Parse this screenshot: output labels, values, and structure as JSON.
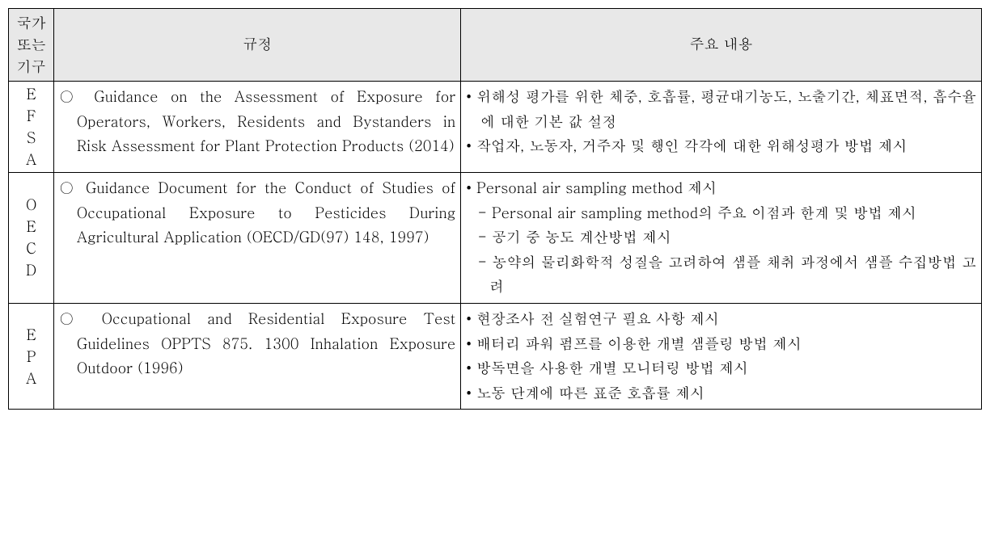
{
  "table": {
    "headers": {
      "col1_l1": "국가",
      "col1_l2": "또는",
      "col1_l3": "기구",
      "col2": "규정",
      "col3": "주요 내용"
    },
    "rows": [
      {
        "org": "EFSA",
        "reg": "○ Guidance on the Assessment of Exposure for Operators, Workers, Residents and Bystanders in Risk Assessment for Plant Protection Products (2014)",
        "bullets": [
          "• 위해성 평가를 위한 체중, 호흡률, 평균대기농도, 노출기간, 체표면적, 흡수율에 대한 기본 값 설정",
          "• 작업자, 노동자, 거주자 및 행인 각각에 대한 위해성평가 방법 제시"
        ],
        "subs": []
      },
      {
        "org": "OECD",
        "reg": "○ Guidance Document for the Conduct of Studies of Occupational Exposure to Pesticides During Agricultural Application (OECD/GD(97) 148, 1997)",
        "bullets": [
          "•  Personal air sampling method 제시"
        ],
        "subs": [
          "- Personal air sampling method의 주요 이점과 한계 및 방법 제시",
          "- 공기 중 농도 계산방법 제시",
          "- 농약의 물리화학적 성질을 고려하여 샘플 채취 과정에서 샘플 수집방법 고려"
        ]
      },
      {
        "org": "EPA",
        "reg": "○ Occupational and Residential Exposure Test Guidelines OPPTS 875. 1300 Inhalation Exposure Outdoor (1996)",
        "bullets": [
          "• 현장조사 전 실험연구 필요 사항 제시",
          "• 배터리 파워 펌프를 이용한 개별 샘플링 방법 제시",
          "• 방독면을 사용한 개별 모니터링 방법 제시",
          "• 노동 단계에 따른 표준 호흡률 제시"
        ],
        "subs": []
      }
    ]
  }
}
